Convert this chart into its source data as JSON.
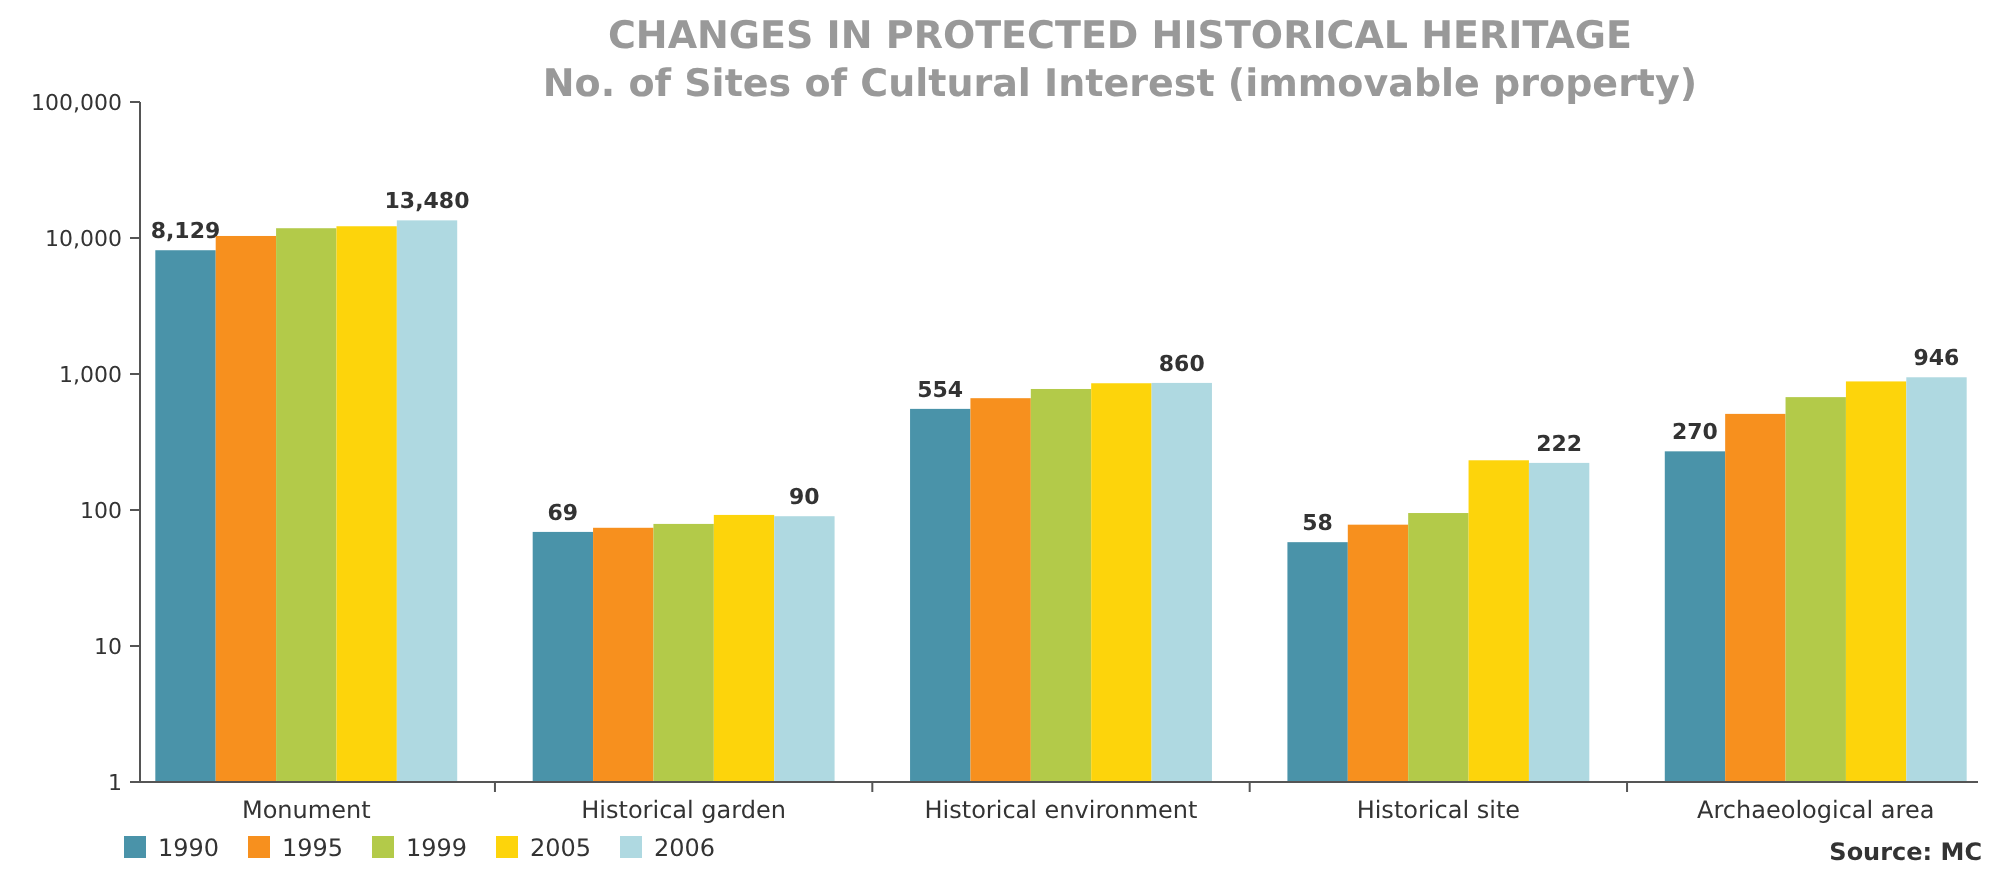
{
  "chart_data": {
    "type": "bar",
    "title": "CHANGES IN PROTECTED HISTORICAL HERITAGE",
    "subtitle": "No. of Sites of Cultural Interest (immovable property)",
    "categories": [
      "Monument",
      "Historical garden",
      "Historical environment",
      "Historical site",
      "Archaeological area"
    ],
    "series": [
      {
        "name": "1990",
        "color": "#4a93a9",
        "values": [
          8129,
          69,
          554,
          58,
          270
        ],
        "value_labels": [
          "8,129",
          "69",
          "554",
          "58",
          "270"
        ]
      },
      {
        "name": "1995",
        "color": "#f7901e",
        "values": [
          10350,
          74,
          664,
          78,
          509
        ]
      },
      {
        "name": "1999",
        "color": "#b3ca49",
        "values": [
          11800,
          79,
          776,
          95,
          676
        ]
      },
      {
        "name": "2005",
        "color": "#fdd40b",
        "values": [
          12200,
          92,
          855,
          232,
          882
        ]
      },
      {
        "name": "2006",
        "color": "#afd9e1",
        "values": [
          13480,
          90,
          860,
          222,
          946
        ],
        "value_labels": [
          "13,480",
          "90",
          "860",
          "222",
          "946"
        ]
      }
    ],
    "log": true,
    "ylim": [
      1,
      100000
    ],
    "yticks": [
      1,
      10,
      100,
      {
        "value": 1000,
        "label": "1,000"
      },
      {
        "value": 10000,
        "label": "10,000"
      },
      {
        "value": 100000,
        "label": "100,000"
      }
    ],
    "grid": false,
    "legend": "bottom left",
    "annotations": [
      "Source: MC"
    ]
  }
}
